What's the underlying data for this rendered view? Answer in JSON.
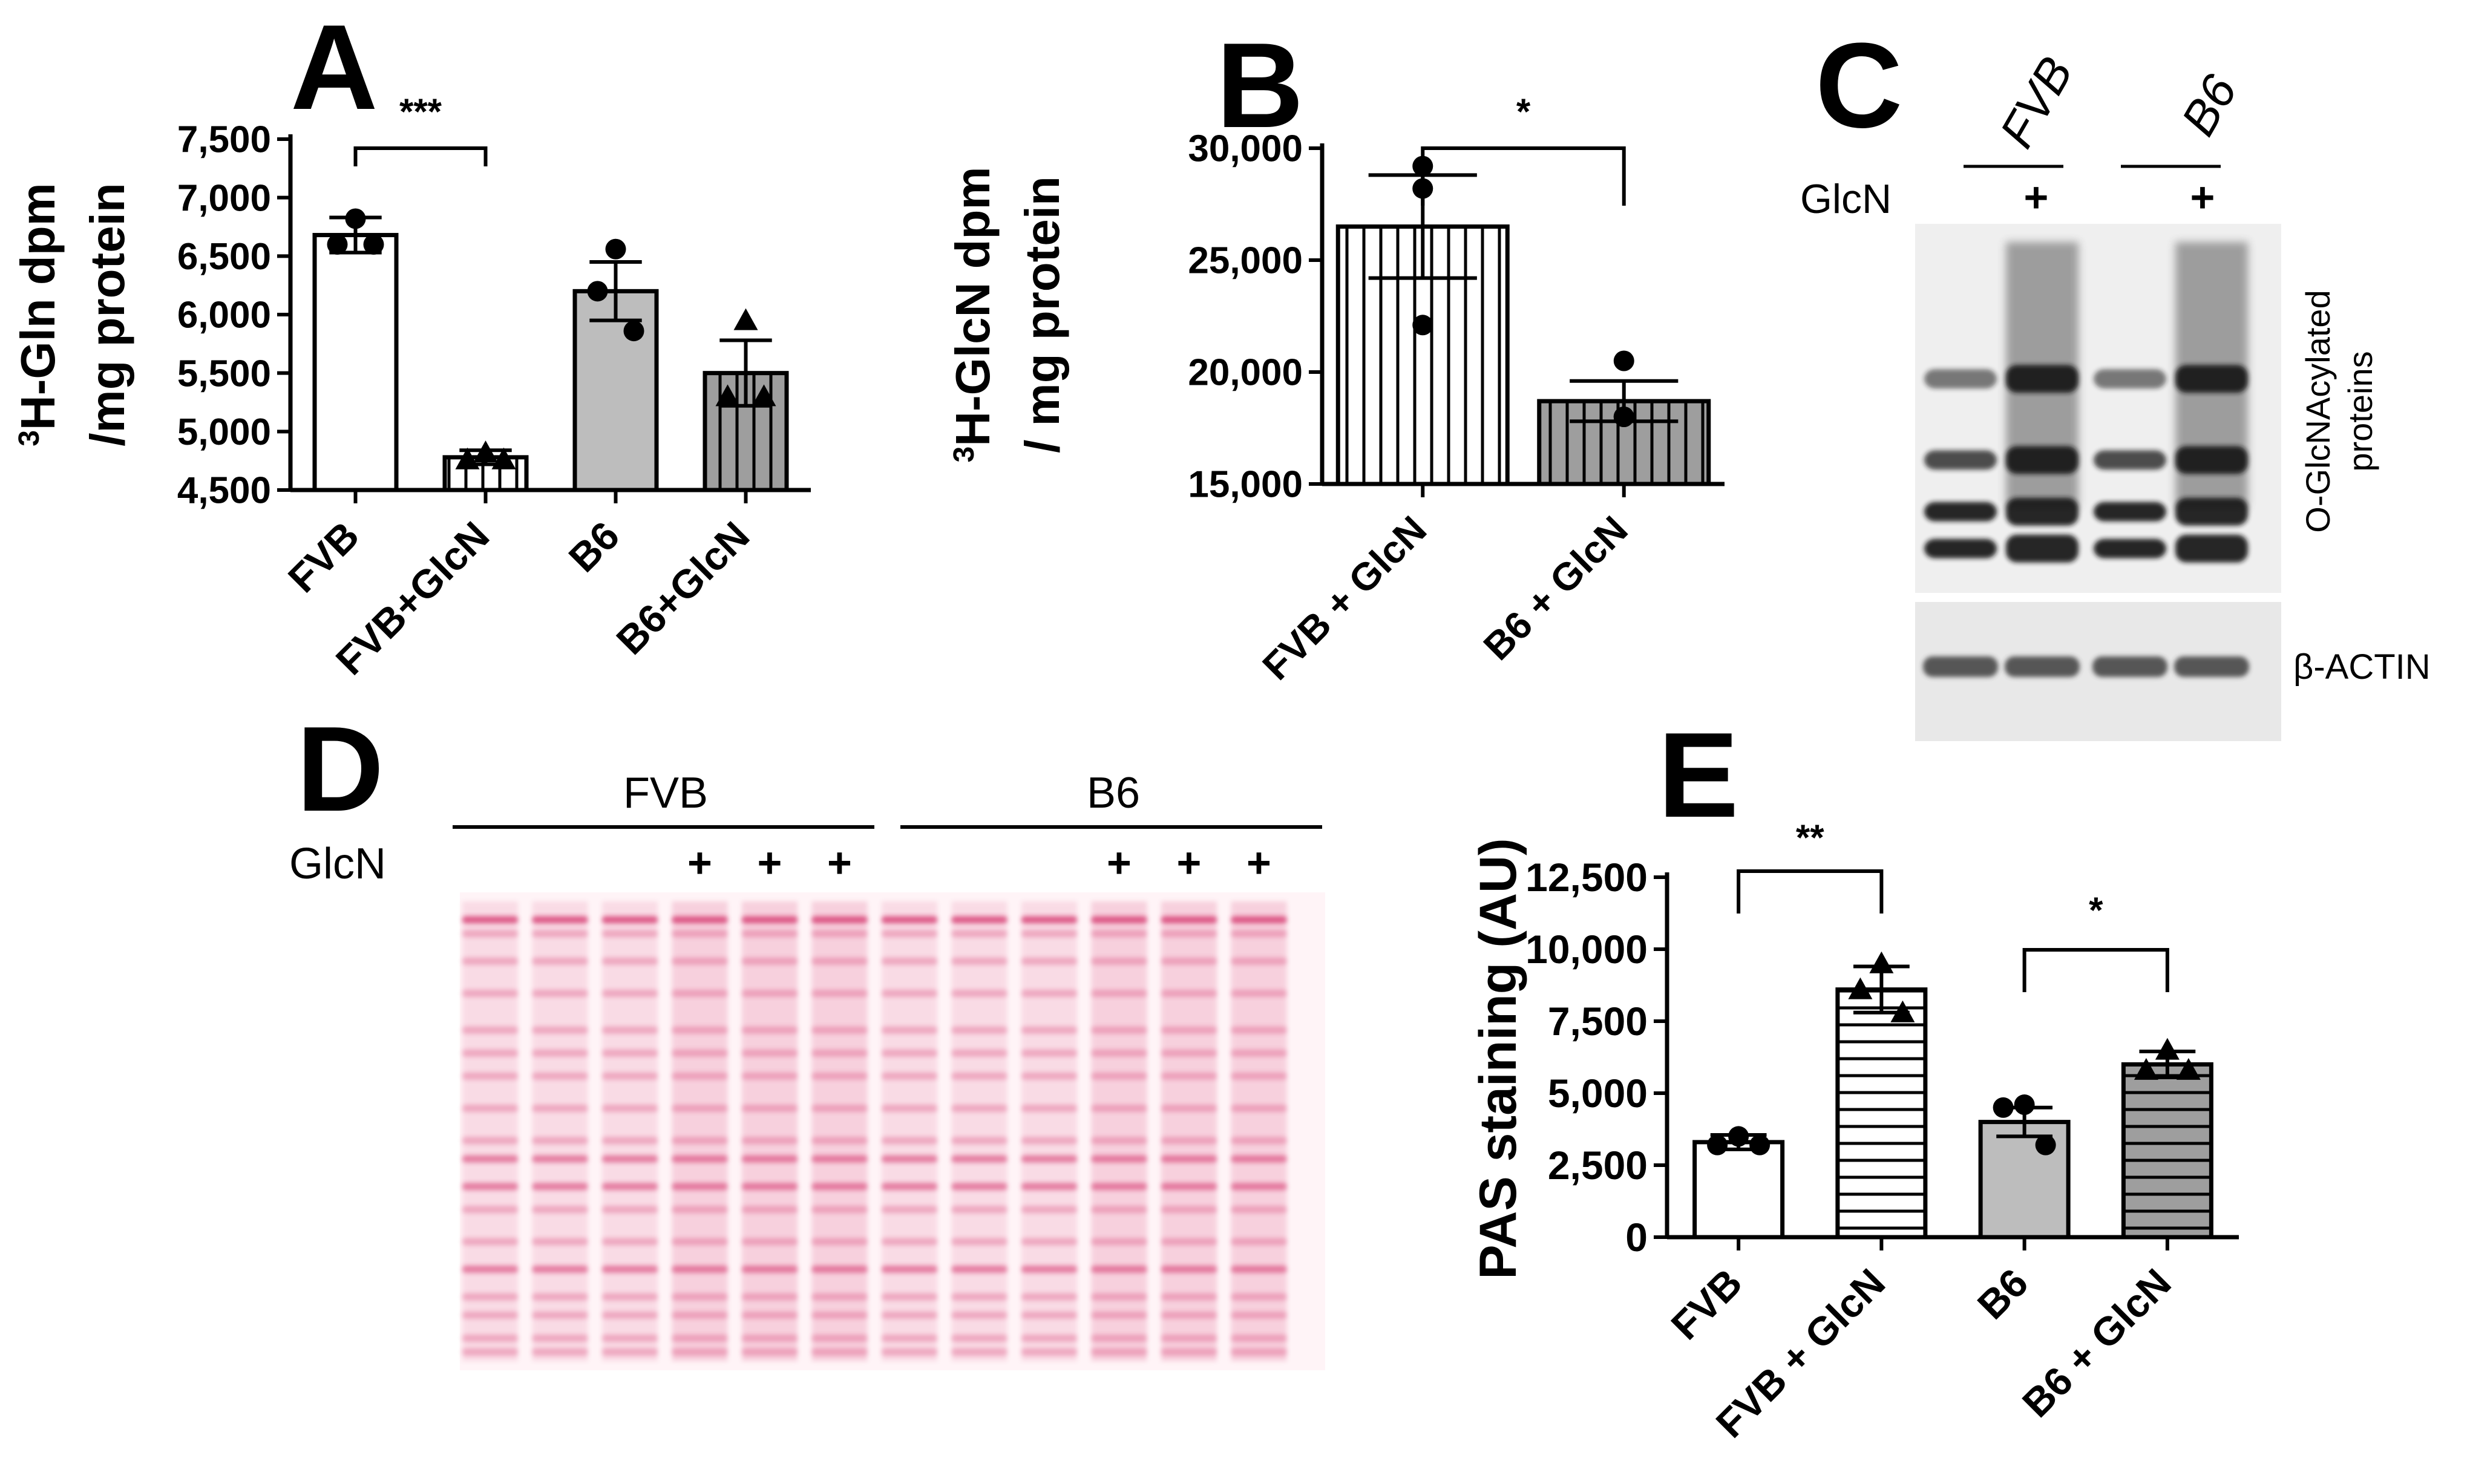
{
  "panels": {
    "A": "A",
    "B": "B",
    "C": "C",
    "D": "D",
    "E": "E"
  },
  "chart_data": [
    {
      "panel": "A",
      "type": "bar",
      "title": "",
      "ylabel_sup": "3",
      "ylabel_line1": "H-Gln dpm",
      "ylabel_line2": "/mg protein",
      "xlabel": "",
      "categories": [
        "FVB",
        "FVB+GlcN",
        "B6",
        "B6+GlcN"
      ],
      "values": [
        6680,
        4780,
        6200,
        5500
      ],
      "errors": [
        150,
        60,
        250,
        280
      ],
      "points": [
        [
          6820,
          6600,
          6600
        ],
        [
          4820,
          4760,
          4760
        ],
        [
          6560,
          6200,
          5860
        ],
        [
          5950,
          5300,
          5300
        ]
      ],
      "markers": [
        "circle",
        "triangle",
        "circle",
        "triangle"
      ],
      "fills": [
        "#ffffff",
        "vlines",
        "#bdbdbd",
        "grey-vlines"
      ],
      "ylim": [
        4500,
        7500
      ],
      "yticks": [
        4500,
        5000,
        5500,
        6000,
        6500,
        7000,
        7500
      ],
      "ytick_labels": [
        "4,500",
        "5,000",
        "5,500",
        "6,000",
        "6,500",
        "7,000",
        "7,500"
      ],
      "significance": [
        {
          "from": 0,
          "to": 1,
          "label": "***"
        }
      ]
    },
    {
      "panel": "B",
      "type": "bar",
      "title": "",
      "ylabel_sup": "3",
      "ylabel_line1": "H-GlcN dpm",
      "ylabel_line2": "/ mg protein",
      "xlabel": "",
      "categories": [
        "FVB + GlcN",
        "B6 + GlcN"
      ],
      "values": [
        26500,
        18700
      ],
      "errors": [
        2300,
        900
      ],
      "points": [
        [
          29200,
          28200,
          22100
        ],
        [
          20500,
          18000,
          18000
        ]
      ],
      "markers": [
        "circle",
        "circle"
      ],
      "fills": [
        "vlines",
        "grey-vlines"
      ],
      "ylim": [
        15000,
        30000
      ],
      "yticks": [
        15000,
        20000,
        25000,
        30000
      ],
      "ytick_labels": [
        "15,000",
        "20,000",
        "25,000",
        "30,000"
      ],
      "significance": [
        {
          "from": 0,
          "to": 1,
          "label": "*"
        }
      ]
    },
    {
      "panel": "E",
      "type": "bar",
      "title": "",
      "ylabel": "PAS staining (AU)",
      "xlabel": "",
      "categories": [
        "FVB",
        "FVB + GlcN",
        "B6",
        "B6 + GlcN"
      ],
      "values": [
        3300,
        8600,
        4000,
        6000
      ],
      "errors": [
        250,
        800,
        500,
        450
      ],
      "points": [
        [
          3500,
          3200,
          3200
        ],
        [
          9500,
          8600,
          7800
        ],
        [
          4600,
          4500,
          3200
        ],
        [
          6500,
          5800,
          5800
        ]
      ],
      "markers": [
        "circle",
        "triangle",
        "circle",
        "triangle"
      ],
      "fills": [
        "#ffffff",
        "hlines",
        "#bdbdbd",
        "grey-hlines"
      ],
      "ylim": [
        0,
        12500
      ],
      "yticks": [
        0,
        2500,
        5000,
        7500,
        10000,
        12500
      ],
      "ytick_labels": [
        "0",
        "2,500",
        "5,000",
        "7,500",
        "10,000",
        "12,500"
      ],
      "significance": [
        {
          "from": 0,
          "to": 1,
          "label": "**"
        },
        {
          "from": 2,
          "to": 3,
          "label": "*"
        }
      ]
    }
  ],
  "blot_c": {
    "group_labels": [
      "FVB",
      "B6"
    ],
    "row_label": "GlcN",
    "plus": "+",
    "main_label_line1": "O-GlcNAcylated",
    "main_label_line2": "proteins",
    "actin_label": "β-ACTIN",
    "lane_treated": [
      false,
      true,
      false,
      true
    ],
    "band_levels": [
      0.58,
      0.36,
      0.22,
      0.12
    ]
  },
  "blot_d": {
    "group_labels": [
      "FVB",
      "B6"
    ],
    "row_label": "GlcN",
    "plus": "+",
    "lane_treated": [
      false,
      false,
      false,
      true,
      true,
      true,
      false,
      false,
      false,
      true,
      true,
      true
    ],
    "stain_color": "#d4306a"
  }
}
